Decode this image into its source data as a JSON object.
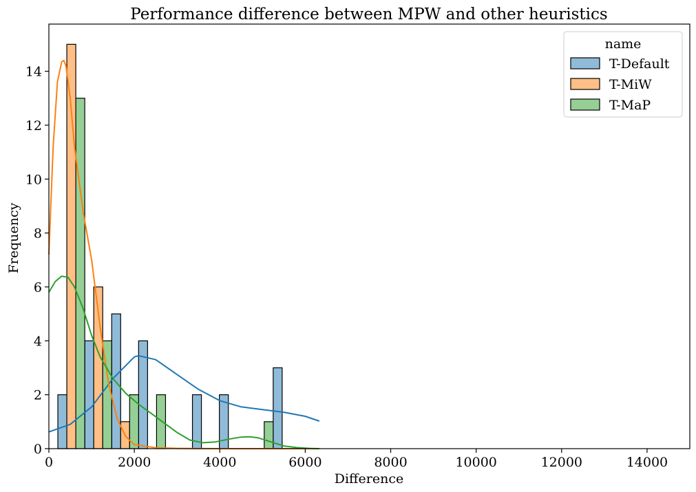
{
  "chart_data": {
    "type": "bar",
    "title": "Performance difference between MPW and other heuristics",
    "xlabel": "Difference",
    "ylabel": "Frequency",
    "xlim": [
      0,
      15000
    ],
    "ylim": [
      0,
      15.75
    ],
    "xticks": [
      0,
      2000,
      4000,
      6000,
      8000,
      10000,
      12000,
      14000
    ],
    "yticks": [
      0,
      2,
      4,
      6,
      8,
      10,
      12,
      14
    ],
    "grid": false,
    "legend": {
      "title": "name",
      "position": "top-right"
    },
    "bin_width": 630,
    "bin_starts": [
      210,
      840,
      1470,
      2100,
      3360,
      3990,
      4620,
      5250
    ],
    "series": [
      {
        "name": "T-Default",
        "color": "#1f77b4",
        "fill": "#8fbbd9",
        "values": [
          2,
          4,
          5,
          4,
          2,
          2,
          0,
          3
        ],
        "kde_x": [
          0,
          500,
          1000,
          1500,
          2000,
          2100,
          2500,
          3000,
          3500,
          4000,
          4500,
          5000,
          5500,
          6000,
          6330
        ],
        "kde_y": [
          0.62,
          0.9,
          1.55,
          2.6,
          3.4,
          3.45,
          3.3,
          2.75,
          2.2,
          1.78,
          1.55,
          1.45,
          1.35,
          1.2,
          1.02
        ]
      },
      {
        "name": "T-MiW",
        "color": "#ff7f0e",
        "fill": "#ffbf86",
        "values": [
          15,
          6,
          1,
          0,
          0,
          0,
          0,
          0
        ],
        "kde_x": [
          0,
          100,
          200,
          300,
          350,
          400,
          500,
          600,
          800,
          1000,
          1200,
          1400,
          1600,
          1800,
          2000,
          2500,
          3000,
          4000,
          5000,
          6330
        ],
        "kde_y": [
          7.2,
          11.2,
          13.6,
          14.35,
          14.4,
          14.2,
          13.0,
          11.2,
          8.8,
          7.0,
          4.5,
          2.4,
          1.1,
          0.45,
          0.15,
          0.03,
          0.01,
          0,
          0,
          0
        ]
      },
      {
        "name": "T-MaP",
        "color": "#2ca02c",
        "fill": "#95cf95",
        "values": [
          13,
          4,
          2,
          2,
          0,
          0,
          1,
          0
        ],
        "kde_x": [
          0,
          150,
          300,
          450,
          600,
          800,
          1000,
          1200,
          1500,
          1800,
          2100,
          2400,
          2700,
          3000,
          3300,
          3600,
          3900,
          4200,
          4500,
          4700,
          4900,
          5200,
          5500,
          5800,
          6100,
          6330
        ],
        "kde_y": [
          5.8,
          6.2,
          6.4,
          6.35,
          6.0,
          5.2,
          4.2,
          3.4,
          2.6,
          2.05,
          1.65,
          1.3,
          0.95,
          0.6,
          0.32,
          0.22,
          0.25,
          0.35,
          0.43,
          0.44,
          0.4,
          0.25,
          0.1,
          0.04,
          0.01,
          0
        ]
      }
    ]
  }
}
